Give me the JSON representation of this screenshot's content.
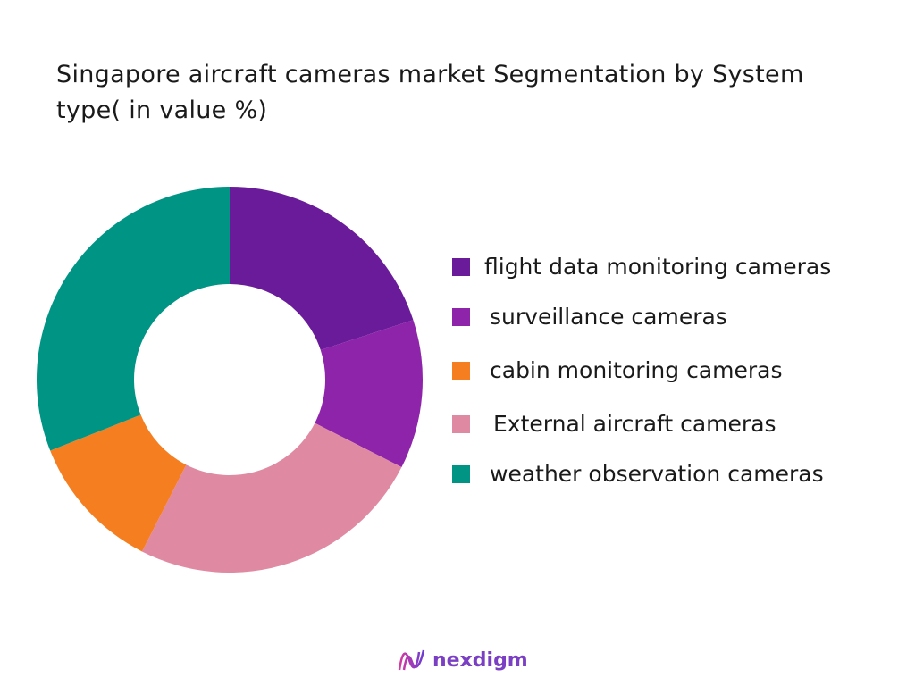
{
  "chart_data": {
    "type": "pie",
    "title": "Singapore aircraft cameras market Segmentation by System type( in value %)",
    "donut": true,
    "legend_position": "right",
    "categories": [
      "flight data monitoring cameras",
      "surveillance cameras",
      "cabin monitoring cameras",
      "External aircraft cameras",
      "weather observation cameras"
    ],
    "values": [
      20,
      12.5,
      11.5,
      25,
      31
    ],
    "colors": [
      "#6a1b9a",
      "#8e24aa",
      "#f57f20",
      "#e089a2",
      "#009485"
    ],
    "slice_order": [
      0,
      1,
      3,
      2,
      4
    ]
  },
  "logo": {
    "text": "nexdigm"
  }
}
